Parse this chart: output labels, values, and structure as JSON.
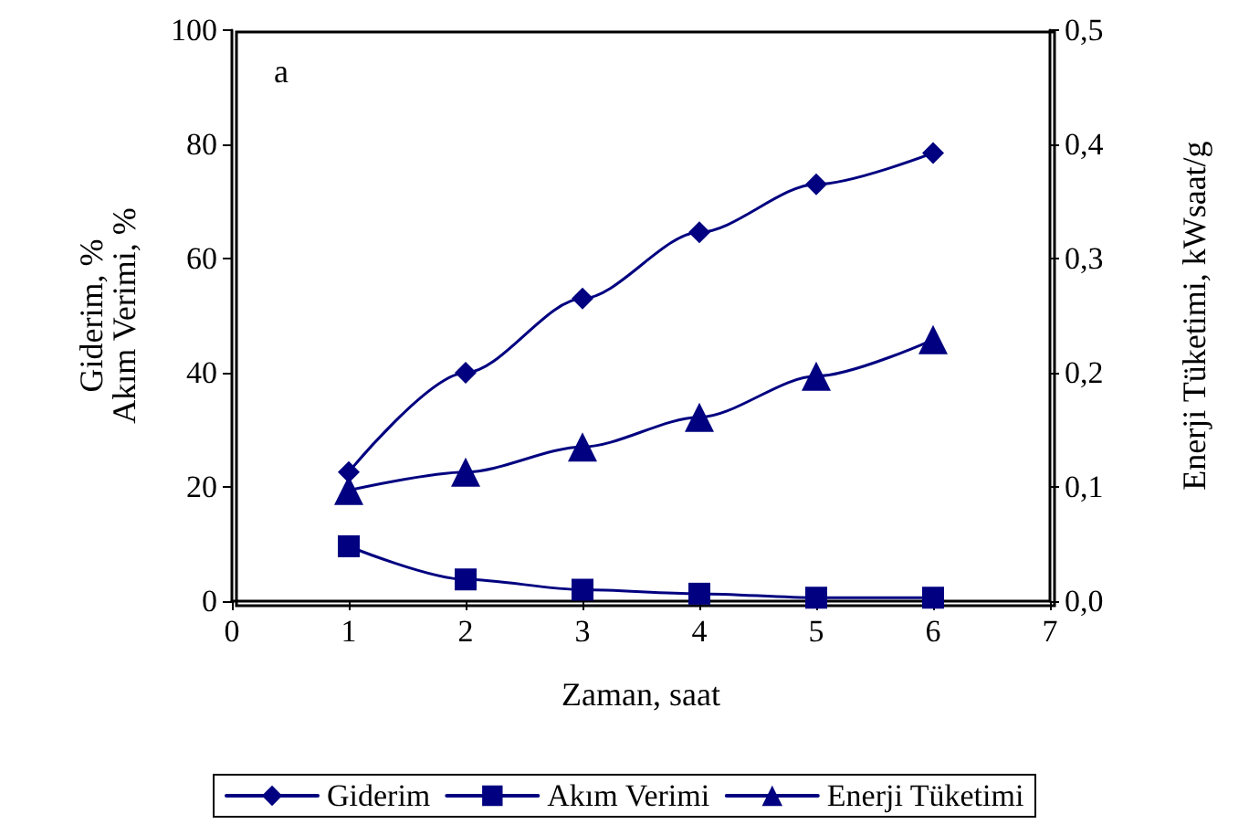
{
  "chart_data": {
    "type": "line",
    "xlabel": "Zaman, saat",
    "ylabel": "Giderim, %\nAkım Verimi, %",
    "y2label": "Enerji Tüketimi, kWsaat/g",
    "annotations": [
      "a"
    ],
    "x": [
      1,
      2,
      3,
      4,
      5,
      6
    ],
    "series": [
      {
        "name": "Giderim",
        "color": "#000080",
        "marker": "diamond",
        "values": [
          22.6,
          40,
          53,
          64.6,
          73,
          78.5
        ]
      },
      {
        "name": "Akım Verimi",
        "color": "#000080",
        "marker": "square",
        "values": [
          9.6,
          3.8,
          2,
          1.3,
          0.6,
          0.6
        ]
      },
      {
        "name": "Enerji Tüketimi",
        "color": "#000080",
        "marker": "triangle",
        "axis": "y2",
        "values": [
          0.097,
          0.113,
          0.135,
          0.161,
          0.197,
          0.229
        ]
      }
    ],
    "xlim": [
      0,
      7
    ],
    "xticks": [
      0,
      1,
      2,
      3,
      4,
      5,
      6,
      7
    ],
    "ylim": [
      0,
      100
    ],
    "yticks": [
      0,
      20,
      40,
      60,
      80,
      100
    ],
    "y2lim": [
      0,
      0.5
    ],
    "y2ticks": [
      {
        "value": 0,
        "label": "0,0"
      },
      {
        "value": 0.1,
        "label": "0,1"
      },
      {
        "value": 0.2,
        "label": "0,2"
      },
      {
        "value": 0.3,
        "label": "0,3"
      },
      {
        "value": 0.4,
        "label": "0,4"
      },
      {
        "value": 0.5,
        "label": "0,5"
      }
    ],
    "legend": "bottom",
    "grid": false,
    "line_style": "solid"
  }
}
